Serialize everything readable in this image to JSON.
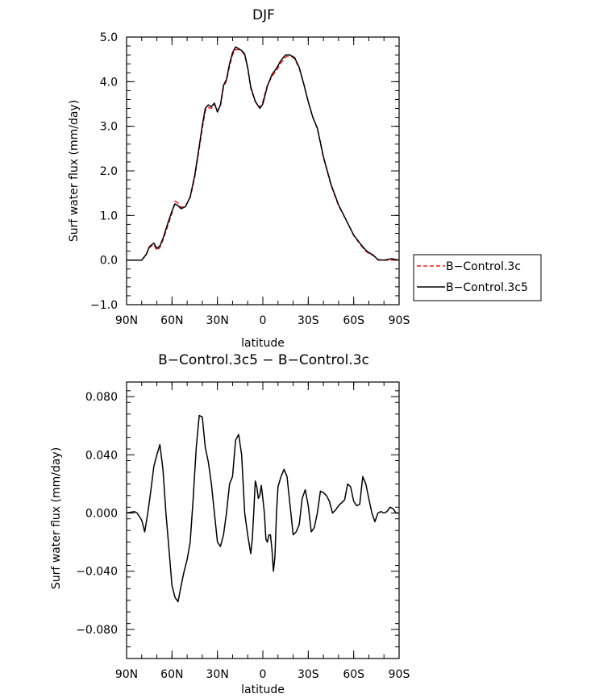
{
  "colors": {
    "control_3c": "#e02020",
    "control_3c5": "#000000",
    "axis": "#000000"
  },
  "chart_data": [
    {
      "type": "line",
      "title": "DJF",
      "xlabel": "latitude",
      "ylabel": "Surf water flux (mm/day)",
      "xlim": [
        -90,
        90
      ],
      "ylim": [
        -1.0,
        5.0
      ],
      "xticks": [
        {
          "value": -90,
          "label": "90N"
        },
        {
          "value": -60,
          "label": "60N"
        },
        {
          "value": -30,
          "label": "30N"
        },
        {
          "value": 0,
          "label": "0"
        },
        {
          "value": 30,
          "label": "30S"
        },
        {
          "value": 60,
          "label": "60S"
        },
        {
          "value": 90,
          "label": "90S"
        }
      ],
      "yticks": [
        {
          "value": -1.0,
          "label": "−1.0"
        },
        {
          "value": 0.0,
          "label": "0.0"
        },
        {
          "value": 1.0,
          "label": "1.0"
        },
        {
          "value": 2.0,
          "label": "2.0"
        },
        {
          "value": 3.0,
          "label": "3.0"
        },
        {
          "value": 4.0,
          "label": "4.0"
        },
        {
          "value": 5.0,
          "label": "5.0"
        }
      ],
      "legend_position": "right",
      "series": [
        {
          "name": "B−Control.3c",
          "style": "dashed",
          "color": "#e02020",
          "x": [
            -90,
            -80,
            -77,
            -75,
            -72,
            -70,
            -68,
            -66,
            -63,
            -60,
            -58,
            -56,
            -54,
            -51,
            -48,
            -45,
            -42,
            -40,
            -38,
            -36,
            -34,
            -32,
            -30,
            -28,
            -26,
            -24,
            -22,
            -20,
            -18,
            -16,
            -14,
            -12,
            -10,
            -8,
            -5,
            -2,
            0,
            3,
            6,
            9,
            12,
            15,
            18,
            21,
            24,
            27,
            30,
            33,
            36,
            40,
            45,
            50,
            55,
            60,
            65,
            68,
            70,
            73,
            76,
            80,
            85,
            90
          ],
          "y": [
            0.0,
            0.0,
            0.12,
            0.28,
            0.35,
            0.22,
            0.28,
            0.45,
            0.75,
            1.05,
            1.32,
            1.28,
            1.18,
            1.22,
            1.4,
            1.85,
            2.5,
            2.95,
            3.35,
            3.42,
            3.4,
            3.5,
            3.35,
            3.45,
            3.88,
            4.02,
            4.35,
            4.6,
            4.72,
            4.72,
            4.68,
            4.6,
            4.3,
            3.85,
            3.55,
            3.42,
            3.55,
            3.92,
            4.12,
            4.25,
            4.42,
            4.55,
            4.58,
            4.52,
            4.3,
            3.95,
            3.55,
            3.2,
            2.95,
            2.3,
            1.68,
            1.22,
            0.9,
            0.55,
            0.32,
            0.2,
            0.15,
            0.1,
            0.0,
            0.0,
            0.0,
            0.0
          ]
        },
        {
          "name": "B−Control.3c5",
          "style": "solid",
          "color": "#000000",
          "x": [
            -90,
            -80,
            -77,
            -75,
            -72,
            -70,
            -68,
            -66,
            -63,
            -60,
            -58,
            -56,
            -54,
            -51,
            -48,
            -45,
            -42,
            -40,
            -38,
            -36,
            -34,
            -32,
            -30,
            -28,
            -26,
            -24,
            -22,
            -20,
            -18,
            -16,
            -14,
            -12,
            -10,
            -8,
            -5,
            -2,
            0,
            3,
            6,
            9,
            12,
            15,
            18,
            21,
            24,
            27,
            30,
            33,
            36,
            40,
            45,
            50,
            55,
            60,
            65,
            68,
            70,
            73,
            76,
            80,
            85,
            90
          ],
          "y": [
            0.0,
            0.0,
            0.13,
            0.3,
            0.38,
            0.26,
            0.32,
            0.48,
            0.8,
            1.1,
            1.26,
            1.22,
            1.15,
            1.2,
            1.42,
            1.9,
            2.55,
            3.02,
            3.4,
            3.48,
            3.44,
            3.52,
            3.32,
            3.48,
            3.92,
            4.05,
            4.4,
            4.65,
            4.78,
            4.74,
            4.7,
            4.62,
            4.32,
            3.88,
            3.56,
            3.4,
            3.5,
            3.9,
            4.16,
            4.3,
            4.48,
            4.6,
            4.6,
            4.54,
            4.32,
            3.95,
            3.55,
            3.2,
            2.96,
            2.32,
            1.7,
            1.24,
            0.9,
            0.56,
            0.34,
            0.22,
            0.17,
            0.11,
            0.01,
            0.0,
            0.03,
            0.0
          ]
        }
      ]
    },
    {
      "type": "line",
      "title": "B−Control.3c5 − B−Control.3c",
      "xlabel": "latitude",
      "ylabel": "Surf water flux (mm/day)",
      "xlim": [
        -90,
        90
      ],
      "ylim": [
        -0.1,
        0.09
      ],
      "xticks": [
        {
          "value": -90,
          "label": "90N"
        },
        {
          "value": -60,
          "label": "60N"
        },
        {
          "value": -30,
          "label": "30N"
        },
        {
          "value": 0,
          "label": "0"
        },
        {
          "value": 30,
          "label": "30S"
        },
        {
          "value": 60,
          "label": "60S"
        },
        {
          "value": 90,
          "label": "90S"
        }
      ],
      "yticks": [
        {
          "value": -0.08,
          "label": "−0.080"
        },
        {
          "value": -0.04,
          "label": "−0.040"
        },
        {
          "value": 0.0,
          "label": "0.000"
        },
        {
          "value": 0.04,
          "label": "0.040"
        },
        {
          "value": 0.08,
          "label": "0.080"
        }
      ],
      "series": [
        {
          "name": "",
          "style": "solid",
          "color": "#000000",
          "x": [
            -90,
            -85,
            -83,
            -80,
            -78,
            -76,
            -74,
            -72,
            -70,
            -68,
            -66,
            -64,
            -62,
            -60,
            -58,
            -56,
            -54,
            -52,
            -50,
            -48,
            -46,
            -44,
            -42,
            -40,
            -38,
            -36,
            -34,
            -32,
            -30,
            -28,
            -26,
            -24,
            -22,
            -20,
            -18,
            -16,
            -14,
            -12,
            -10,
            -8,
            -7,
            -6,
            -5,
            -4,
            -3,
            -2,
            -1,
            0,
            1,
            2,
            3,
            4,
            5,
            6,
            7,
            8,
            9,
            10,
            12,
            14,
            16,
            18,
            20,
            22,
            24,
            26,
            28,
            30,
            32,
            34,
            36,
            38,
            40,
            42,
            44,
            46,
            48,
            50,
            52,
            54,
            56,
            58,
            60,
            62,
            64,
            66,
            68,
            70,
            72,
            74,
            76,
            78,
            80,
            82,
            84,
            86,
            88,
            90
          ],
          "y": [
            0.0,
            0.001,
            0.0,
            -0.005,
            -0.013,
            0.0,
            0.015,
            0.032,
            0.04,
            0.047,
            0.03,
            0.0,
            -0.025,
            -0.05,
            -0.058,
            -0.061,
            -0.05,
            -0.04,
            -0.032,
            -0.02,
            0.01,
            0.045,
            0.067,
            0.066,
            0.045,
            0.035,
            0.02,
            0.0,
            -0.02,
            -0.023,
            -0.015,
            0.0,
            0.02,
            0.025,
            0.05,
            0.054,
            0.04,
            0.0,
            -0.015,
            -0.028,
            -0.018,
            0.0,
            0.022,
            0.018,
            0.01,
            0.012,
            0.019,
            0.01,
            0.0,
            -0.018,
            -0.02,
            -0.015,
            -0.015,
            -0.025,
            -0.04,
            -0.03,
            0.0,
            0.018,
            0.025,
            0.03,
            0.025,
            0.005,
            -0.015,
            -0.013,
            -0.008,
            0.01,
            0.016,
            0.005,
            -0.013,
            -0.01,
            0.0,
            0.015,
            0.014,
            0.012,
            0.008,
            0.0,
            0.002,
            0.005,
            0.007,
            0.009,
            0.02,
            0.018,
            0.008,
            0.005,
            0.006,
            0.025,
            0.02,
            0.01,
            0.0,
            -0.006,
            0.0,
            0.001,
            0.0,
            0.001,
            0.004,
            0.003,
            0.0,
            0.0
          ]
        }
      ]
    }
  ]
}
